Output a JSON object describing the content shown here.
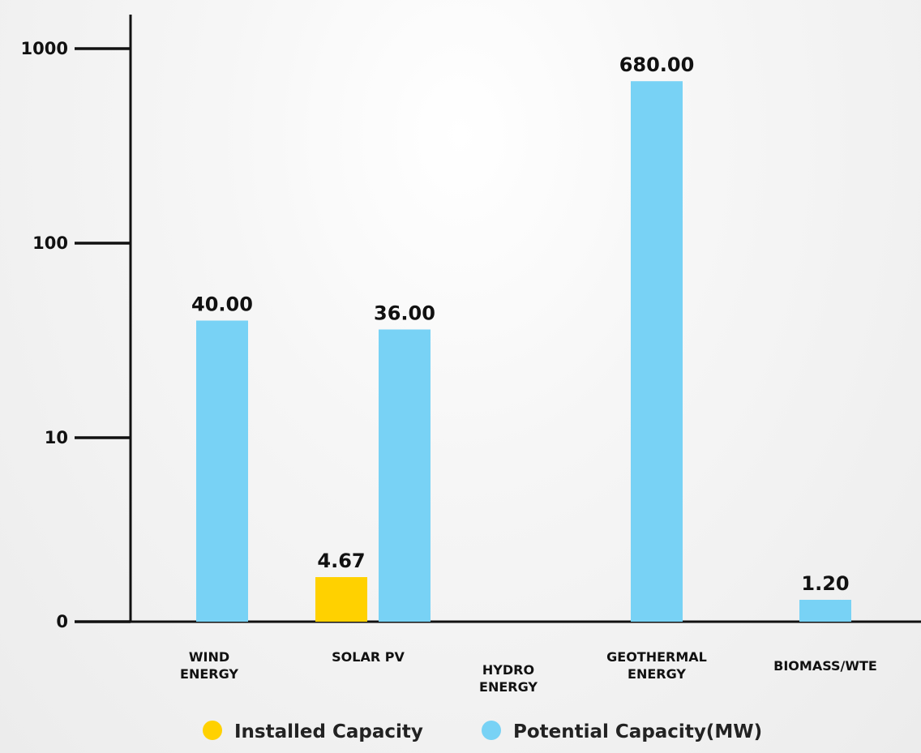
{
  "chart_data": {
    "type": "bar",
    "scale": "log",
    "categories": [
      [
        "WIND",
        "ENERGY"
      ],
      [
        "SOLAR PV"
      ],
      [
        "HYDRO",
        "ENERGY"
      ],
      [
        "GEOTHERMAL",
        "ENERGY"
      ],
      [
        "BIOMASS/WTE"
      ]
    ],
    "series": [
      {
        "name": "Installed Capacity",
        "color": "#FFD100",
        "values": [
          null,
          4.67,
          null,
          null,
          null
        ],
        "labels": [
          null,
          "4.67",
          null,
          null,
          null
        ]
      },
      {
        "name": "Potential Capacity(MW)",
        "color": "#78D2F5",
        "values": [
          40,
          36,
          null,
          680,
          1.2
        ],
        "labels": [
          "40.00",
          "36.00",
          null,
          "680.00",
          "1.20"
        ]
      }
    ],
    "yticks": [
      0,
      10,
      100,
      1000
    ],
    "ytick_labels": [
      "0",
      "10",
      "100",
      "1000"
    ],
    "ylim": [
      0,
      1000
    ],
    "xlabel": "",
    "ylabel": "",
    "legend_position": "bottom"
  }
}
